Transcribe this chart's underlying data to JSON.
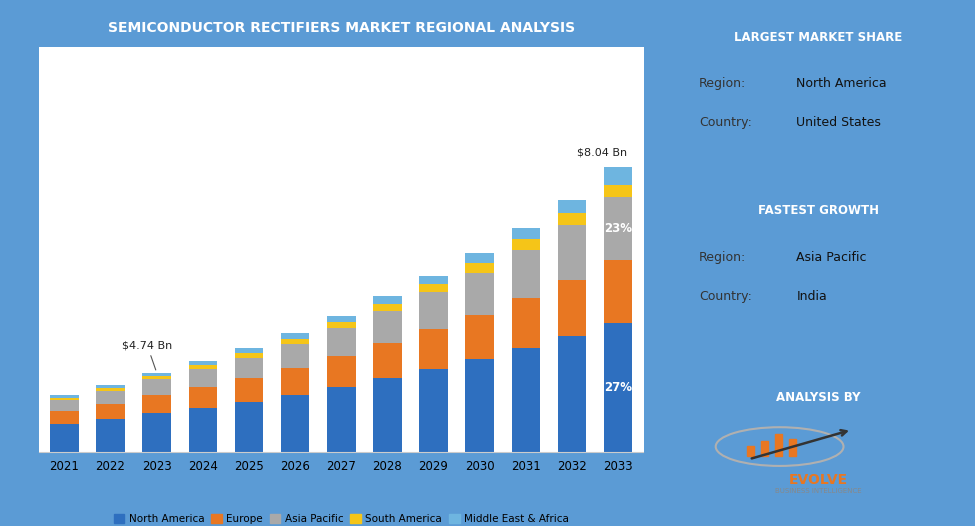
{
  "years": [
    "2021",
    "2022",
    "2023",
    "2024",
    "2025",
    "2026",
    "2027",
    "2028",
    "2029",
    "2030",
    "2031",
    "2032",
    "2033"
  ],
  "north_america": [
    0.7,
    0.82,
    0.97,
    1.1,
    1.25,
    1.42,
    1.62,
    1.84,
    2.06,
    2.3,
    2.58,
    2.88,
    3.2
  ],
  "europe": [
    0.32,
    0.38,
    0.45,
    0.51,
    0.58,
    0.67,
    0.76,
    0.87,
    0.98,
    1.1,
    1.23,
    1.38,
    1.54
  ],
  "asia_pacific": [
    0.27,
    0.32,
    0.38,
    0.44,
    0.51,
    0.59,
    0.68,
    0.79,
    0.91,
    1.04,
    1.19,
    1.36,
    1.56
  ],
  "south_america": [
    0.06,
    0.07,
    0.08,
    0.1,
    0.11,
    0.13,
    0.15,
    0.17,
    0.2,
    0.23,
    0.26,
    0.3,
    0.3
  ],
  "middle_east": [
    0.06,
    0.07,
    0.09,
    0.1,
    0.12,
    0.14,
    0.16,
    0.18,
    0.21,
    0.24,
    0.27,
    0.3,
    0.44
  ],
  "colors_na": "#2E6FBF",
  "colors_eu": "#E87722",
  "colors_ap": "#A9A9A9",
  "colors_sa": "#F5C518",
  "colors_me": "#6EB5E0",
  "title": "SEMICONDUCTOR RECTIFIERS MARKET REGIONAL ANALYSIS",
  "title_bg": "#1F5FAD",
  "chart_bg": "#5B9BD5",
  "plot_bg": "#FFFFFF",
  "annotation_2023": "$4.74 Bn",
  "annotation_2033": "$8.04 Bn",
  "pct_na": "27%",
  "pct_ap": "23%",
  "legend_labels": [
    "North America",
    "Europe",
    "Asia Pacific",
    "South America",
    "Middle East & Africa"
  ],
  "panel_largest_title": "LARGEST MARKET SHARE",
  "panel_largest_region_label": "Region:",
  "panel_largest_region_val": "North America",
  "panel_largest_country_label": "Country:",
  "panel_largest_country_val": "United States",
  "panel_fastest_title": "FASTEST GROWTH",
  "panel_fastest_region_label": "Region:",
  "panel_fastest_region_val": "Asia Pacific",
  "panel_fastest_country_label": "Country:",
  "panel_fastest_country_val": "India",
  "panel_analysis_title": "ANALYSIS BY",
  "evolve_text": "EVOLVE",
  "evolve_sub": "BUSINESS INTELLIGENCE"
}
